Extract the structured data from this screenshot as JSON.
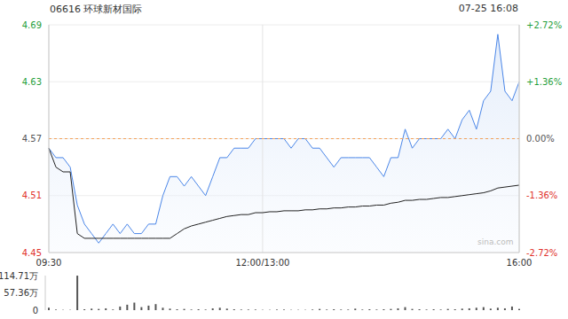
{
  "chart_data": [
    {
      "type": "line",
      "title": "06616 环球新材国际",
      "subtitle": "07-25 16:08",
      "annotations": [
        "sina.com"
      ],
      "categories": [
        "09:30",
        null,
        null,
        null,
        null,
        null,
        null,
        null,
        null,
        null,
        null,
        null,
        null,
        null,
        null,
        null,
        null,
        null,
        null,
        null,
        null,
        null,
        null,
        null,
        null,
        null,
        null,
        null,
        null,
        null,
        "12:00/13:00",
        null,
        null,
        null,
        null,
        null,
        null,
        null,
        null,
        null,
        null,
        null,
        null,
        null,
        null,
        null,
        null,
        null,
        null,
        null,
        null,
        null,
        null,
        null,
        null,
        null,
        null,
        null,
        null,
        null,
        null,
        null,
        null,
        null,
        null,
        null,
        "16:00"
      ],
      "series": [
        {
          "type": "area",
          "color": "#4a86e8",
          "marker": "none",
          "values": [
            4.56,
            4.55,
            4.55,
            4.54,
            4.5,
            4.48,
            4.47,
            4.46,
            4.47,
            4.48,
            4.47,
            4.48,
            4.47,
            4.47,
            4.48,
            4.48,
            4.51,
            4.53,
            4.53,
            4.52,
            4.53,
            4.52,
            4.51,
            4.53,
            4.55,
            4.55,
            4.56,
            4.56,
            4.56,
            4.57,
            4.57,
            4.57,
            4.57,
            4.57,
            4.56,
            4.57,
            4.57,
            4.56,
            4.56,
            4.55,
            4.54,
            4.55,
            4.55,
            4.55,
            4.55,
            4.55,
            4.54,
            4.53,
            4.55,
            4.55,
            4.58,
            4.56,
            4.57,
            4.57,
            4.57,
            4.57,
            4.58,
            4.57,
            4.59,
            4.6,
            4.58,
            4.61,
            4.62,
            4.68,
            4.62,
            4.61,
            4.63
          ]
        },
        {
          "type": "line",
          "color": "#222222",
          "marker": "none",
          "values": [
            4.56,
            4.54,
            4.535,
            4.535,
            4.47,
            4.465,
            4.465,
            4.465,
            4.465,
            4.465,
            4.465,
            4.465,
            4.465,
            4.465,
            4.465,
            4.465,
            4.465,
            4.465,
            4.47,
            4.475,
            4.478,
            4.48,
            4.482,
            4.484,
            4.486,
            4.488,
            4.489,
            4.49,
            4.49,
            4.492,
            4.492,
            4.493,
            4.493,
            4.494,
            4.494,
            4.494,
            4.495,
            4.495,
            4.496,
            4.496,
            4.497,
            4.497,
            4.498,
            4.498,
            4.499,
            4.499,
            4.5,
            4.5,
            4.502,
            4.503,
            4.505,
            4.505,
            4.506,
            4.506,
            4.507,
            4.508,
            4.508,
            4.509,
            4.51,
            4.511,
            4.512,
            4.513,
            4.515,
            4.518,
            4.519,
            4.52,
            4.521
          ]
        }
      ],
      "baseline": 4.57,
      "ylim": [
        4.45,
        4.69
      ],
      "yticks": [
        4.45,
        4.51,
        4.57,
        4.63,
        4.69
      ],
      "y2lim": [
        -2.72,
        2.72
      ],
      "y2ticks": [
        {
          "value": -2.72,
          "label": "-2.72%"
        },
        {
          "value": -1.36,
          "label": "-1.36%"
        },
        {
          "value": 0,
          "label": "0.00%"
        },
        {
          "value": 1.36,
          "label": "+1.36%"
        },
        {
          "value": 2.72,
          "label": "+2.72%"
        }
      ],
      "grid": true
    },
    {
      "type": "bar",
      "categories": [
        "09:30",
        null,
        null,
        null,
        null,
        null,
        null,
        null,
        null,
        null,
        null,
        null,
        null,
        null,
        null,
        null,
        null,
        null,
        null,
        null,
        null,
        null,
        null,
        null,
        null,
        null,
        null,
        null,
        null,
        null,
        "12:00/13:00",
        null,
        null,
        null,
        null,
        null,
        null,
        null,
        null,
        null,
        null,
        null,
        null,
        null,
        null,
        null,
        null,
        null,
        null,
        null,
        null,
        null,
        null,
        null,
        null,
        null,
        null,
        null,
        null,
        null,
        null,
        null,
        null,
        null,
        null,
        null,
        "16:00"
      ],
      "values": [
        8,
        2,
        1,
        1,
        114.5,
        3,
        5,
        4,
        6,
        2,
        12,
        18,
        25,
        10,
        15,
        20,
        8,
        5,
        3,
        4,
        2,
        3,
        2,
        6,
        8,
        5,
        3,
        2,
        2,
        2,
        1,
        1,
        2,
        2,
        1,
        1,
        1,
        2,
        4,
        2,
        3,
        2,
        2,
        5,
        2,
        3,
        2,
        3,
        4,
        6,
        10,
        4,
        3,
        2,
        3,
        2,
        4,
        3,
        5,
        6,
        8,
        10,
        5,
        8,
        6,
        12,
        4
      ],
      "color": "#555555",
      "ylim": [
        0,
        114.71
      ],
      "yticks": [
        0,
        {
          "value": 57.36,
          "label": "57.36万"
        },
        {
          "value": 114.71,
          "label": "114.71万"
        }
      ],
      "tick_labels": "y"
    }
  ]
}
